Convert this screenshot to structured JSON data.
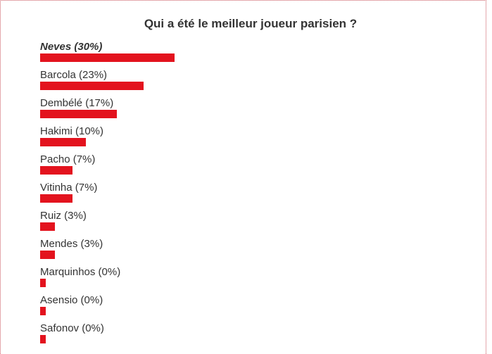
{
  "title": "Qui a été le meilleur joueur parisien ?",
  "colors": {
    "bar": "#e3131e",
    "text": "#333333",
    "frame_border": "#c9525b"
  },
  "chart_data": {
    "type": "bar",
    "orientation": "horizontal",
    "title": "Qui a été le meilleur joueur parisien ?",
    "categories": [
      "Neves",
      "Barcola",
      "Dembélé",
      "Hakimi",
      "Pacho",
      "Vitinha",
      "Ruiz",
      "Mendes",
      "Marquinhos",
      "Asensio",
      "Safonov"
    ],
    "values": [
      30,
      23,
      17,
      10,
      7,
      7,
      3,
      3,
      0,
      0,
      0
    ],
    "unit": "%",
    "labels": [
      "Neves (30%)",
      "Barcola (23%)",
      "Dembélé (17%)",
      "Hakimi (10%)",
      "Pacho (7%)",
      "Vitinha (7%)",
      "Ruiz (3%)",
      "Mendes (3%)",
      "Marquinhos (0%)",
      "Asensio (0%)",
      "Safonov (0%)"
    ],
    "highlighted": "Neves",
    "grid": false,
    "legend": "none"
  }
}
